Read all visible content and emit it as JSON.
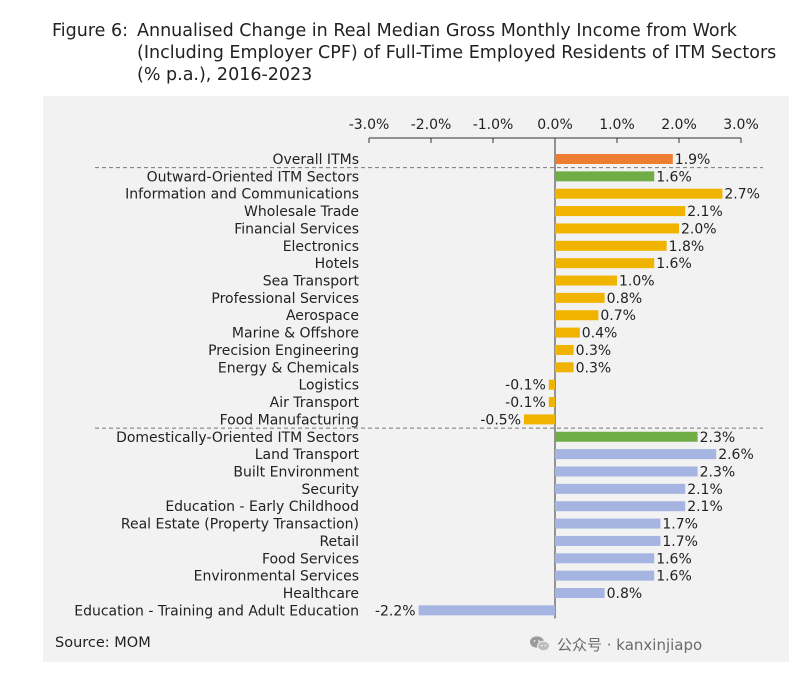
{
  "figure": {
    "label": "Figure 6:",
    "title_lines": [
      "Annualised Change in Real Median Gross Monthly Income from Work",
      "(Including Employer CPF) of Full-Time Employed Residents of ITM Sectors",
      "(% p.a.), 2016-2023"
    ]
  },
  "source": "Source: MOM",
  "watermark": "公众号 · kanxinjiapo",
  "colors": {
    "overall": "#ed7d31",
    "group": "#70ad47",
    "outward": "#f0b400",
    "domestic": "#a5b4e0",
    "axis": "#333333",
    "panel": "#f2f2f2"
  },
  "chart_data": {
    "type": "bar",
    "orientation": "horizontal",
    "xlim": [
      -3.0,
      3.0
    ],
    "xticks": [
      "-3.0%",
      "-2.0%",
      "-1.0%",
      "0.0%",
      "1.0%",
      "2.0%",
      "3.0%"
    ],
    "x_axis_position": "top",
    "grid": false,
    "categories": [
      "Overall ITMs",
      "Outward-Oriented ITM Sectors",
      "Information and Communications",
      "Wholesale Trade",
      "Financial Services",
      "Electronics",
      "Hotels",
      "Sea Transport",
      "Professional Services",
      "Aerospace",
      "Marine & Offshore",
      "Precision Engineering",
      "Energy & Chemicals",
      "Logistics",
      "Air Transport",
      "Food Manufacturing",
      "Domestically-Oriented ITM Sectors",
      "Land Transport",
      "Built Environment",
      "Security",
      "Education - Early Childhood",
      "Real Estate (Property Transaction)",
      "Retail",
      "Food Services",
      "Environmental Services",
      "Healthcare",
      "Education - Training and Adult Education"
    ],
    "values": [
      1.9,
      1.6,
      2.7,
      2.1,
      2.0,
      1.8,
      1.6,
      1.0,
      0.8,
      0.7,
      0.4,
      0.3,
      0.3,
      -0.1,
      -0.1,
      -0.5,
      2.3,
      2.6,
      2.3,
      2.1,
      2.1,
      1.7,
      1.7,
      1.6,
      1.6,
      0.8,
      -2.2
    ],
    "data_labels": [
      "1.9%",
      "1.6%",
      "2.7%",
      "2.1%",
      "2.0%",
      "1.8%",
      "1.6%",
      "1.0%",
      "0.8%",
      "0.7%",
      "0.4%",
      "0.3%",
      "0.3%",
      "-0.1%",
      "-0.1%",
      "-0.5%",
      "2.3%",
      "2.6%",
      "2.3%",
      "2.1%",
      "2.1%",
      "1.7%",
      "1.7%",
      "1.6%",
      "1.6%",
      "0.8%",
      "-2.2%"
    ],
    "color_groups": [
      "overall",
      "group",
      "outward",
      "outward",
      "outward",
      "outward",
      "outward",
      "outward",
      "outward",
      "outward",
      "outward",
      "outward",
      "outward",
      "outward",
      "outward",
      "outward",
      "group",
      "domestic",
      "domestic",
      "domestic",
      "domestic",
      "domestic",
      "domestic",
      "domestic",
      "domestic",
      "domestic",
      "domestic"
    ],
    "dashed_separators_before": [
      "Outward-Oriented ITM Sectors",
      "Domestically-Oriented ITM Sectors"
    ]
  }
}
